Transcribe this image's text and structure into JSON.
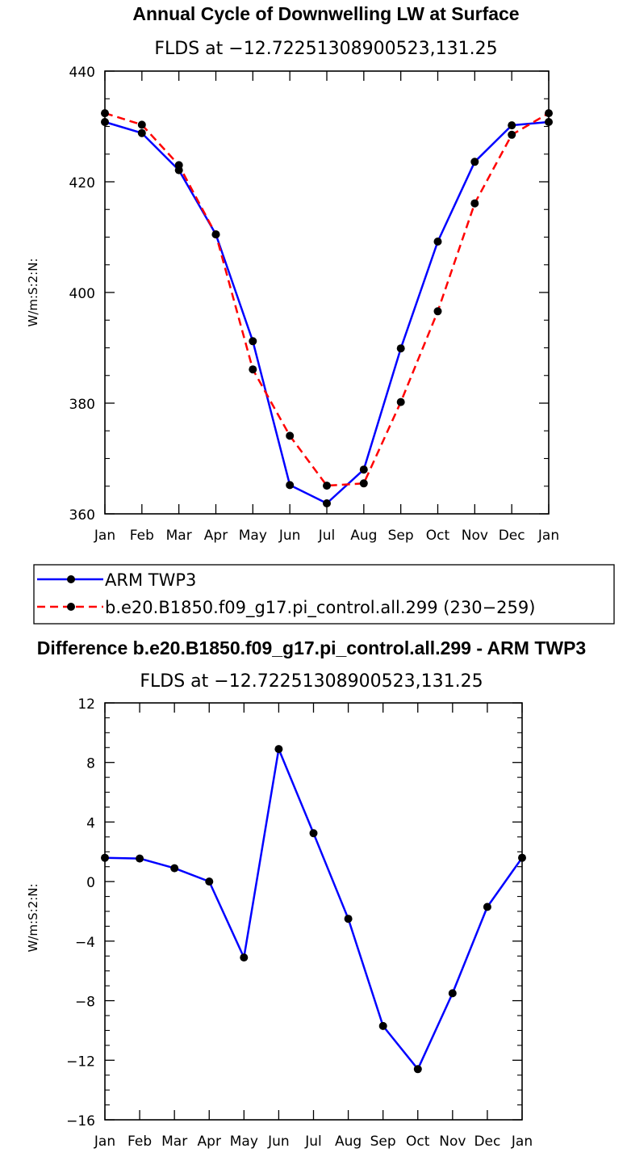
{
  "chart_data": [
    {
      "type": "line",
      "title": "Annual Cycle of Downwelling LW at Surface",
      "subtitle": "FLDS at −12.72251308900523,131.25",
      "ylabel": "W/m:S:2:N:",
      "xlabel": "",
      "categories": [
        "Jan",
        "Feb",
        "Mar",
        "Apr",
        "May",
        "Jun",
        "Jul",
        "Aug",
        "Sep",
        "Oct",
        "Nov",
        "Dec",
        "Jan"
      ],
      "ylim": [
        360,
        440
      ],
      "yticks": [
        360,
        380,
        400,
        420,
        440
      ],
      "series": [
        {
          "name": "ARM TWP3",
          "color": "#0000ff",
          "dash": "solid",
          "values": [
            430.8,
            428.8,
            422.1,
            410.5,
            391.2,
            365.2,
            361.9,
            368.0,
            389.9,
            409.2,
            423.6,
            430.2,
            430.8
          ]
        },
        {
          "name": "b.e20.B1850.f09_g17.pi_control.all.299 (230−259)",
          "color": "#ff0000",
          "dash": "dashed",
          "values": [
            432.4,
            430.3,
            423.0,
            410.5,
            386.1,
            374.1,
            365.1,
            365.5,
            380.2,
            396.6,
            416.1,
            428.5,
            432.4
          ]
        }
      ]
    },
    {
      "type": "line",
      "title": "Difference b.e20.B1850.f09_g17.pi_control.all.299 - ARM TWP3",
      "subtitle": "FLDS at −12.72251308900523,131.25",
      "ylabel": "W/m:S:2:N:",
      "xlabel": "",
      "categories": [
        "Jan",
        "Feb",
        "Mar",
        "Apr",
        "May",
        "Jun",
        "Jul",
        "Aug",
        "Sep",
        "Oct",
        "Nov",
        "Dec",
        "Jan"
      ],
      "ylim": [
        -16,
        12
      ],
      "yticks": [
        -16,
        -12,
        -8,
        -4,
        0,
        4,
        8,
        12
      ],
      "series": [
        {
          "name": "",
          "color": "#0000ff",
          "dash": "solid",
          "values": [
            1.6,
            1.55,
            0.9,
            0.0,
            -5.1,
            8.9,
            3.25,
            -2.5,
            -9.7,
            -12.6,
            -7.5,
            -1.7,
            1.6
          ]
        }
      ]
    }
  ]
}
